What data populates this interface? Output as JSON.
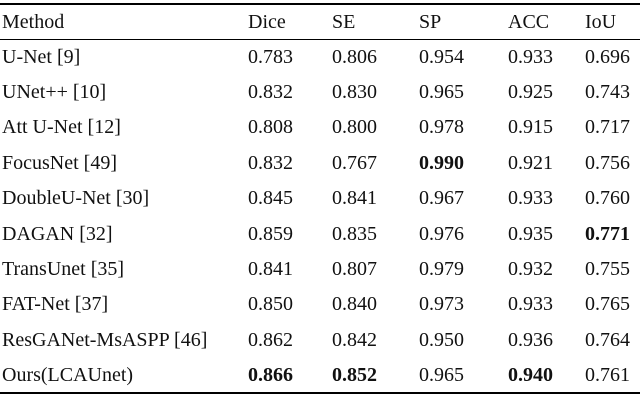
{
  "table": {
    "columns": [
      "Method",
      "Dice",
      "SE",
      "SP",
      "ACC",
      "IoU"
    ],
    "rows": [
      {
        "method": "U-Net [9]",
        "values": [
          "0.783",
          "0.806",
          "0.954",
          "0.933",
          "0.696"
        ],
        "bold": []
      },
      {
        "method": "UNet++ [10]",
        "values": [
          "0.832",
          "0.830",
          "0.965",
          "0.925",
          "0.743"
        ],
        "bold": []
      },
      {
        "method": "Att U-Net [12]",
        "values": [
          "0.808",
          "0.800",
          "0.978",
          "0.915",
          "0.717"
        ],
        "bold": []
      },
      {
        "method": "FocusNet [49]",
        "values": [
          "0.832",
          "0.767",
          "0.990",
          "0.921",
          "0.756"
        ],
        "bold": [
          2
        ]
      },
      {
        "method": "DoubleU-Net [30]",
        "values": [
          "0.845",
          "0.841",
          "0.967",
          "0.933",
          "0.760"
        ],
        "bold": []
      },
      {
        "method": "DAGAN [32]",
        "values": [
          "0.859",
          "0.835",
          "0.976",
          "0.935",
          "0.771"
        ],
        "bold": [
          4
        ]
      },
      {
        "method": "TransUnet [35]",
        "values": [
          "0.841",
          "0.807",
          "0.979",
          "0.932",
          "0.755"
        ],
        "bold": []
      },
      {
        "method": "FAT-Net [37]",
        "values": [
          "0.850",
          "0.840",
          "0.973",
          "0.933",
          "0.765"
        ],
        "bold": []
      },
      {
        "method": "ResGANet-MsASPP [46]",
        "values": [
          "0.862",
          "0.842",
          "0.950",
          "0.936",
          "0.764"
        ],
        "bold": []
      },
      {
        "method": "Ours(LCAUnet)",
        "values": [
          "0.866",
          "0.852",
          "0.965",
          "0.940",
          "0.761"
        ],
        "bold": [
          0,
          1,
          3
        ]
      }
    ]
  },
  "colors": {
    "text": "#111111",
    "rule": "#000000",
    "background": "#ffffff"
  }
}
